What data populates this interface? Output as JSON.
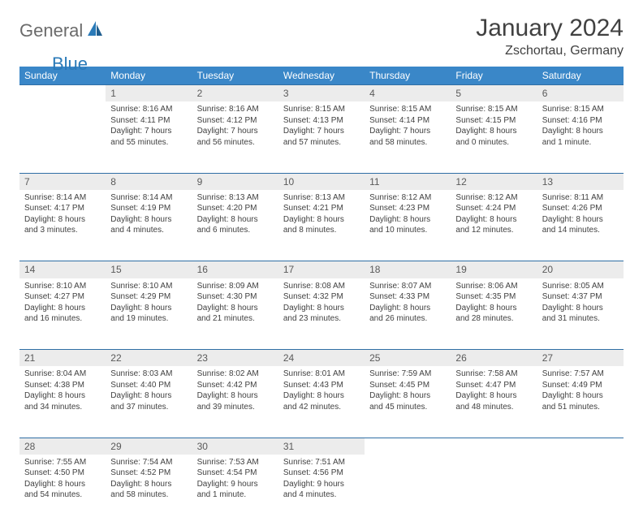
{
  "brand": {
    "general": "General",
    "blue": "Blue"
  },
  "header": {
    "month": "January 2024",
    "location": "Zschortau, Germany"
  },
  "colors": {
    "header_bg": "#3a87c8",
    "header_fg": "#ffffff",
    "daynum_bg": "#ececec",
    "rule": "#2f6ea5",
    "text": "#414141"
  },
  "weekdays": [
    "Sunday",
    "Monday",
    "Tuesday",
    "Wednesday",
    "Thursday",
    "Friday",
    "Saturday"
  ],
  "weeks": [
    [
      null,
      {
        "n": "1",
        "sunrise": "Sunrise: 8:16 AM",
        "sunset": "Sunset: 4:11 PM",
        "d1": "Daylight: 7 hours",
        "d2": "and 55 minutes."
      },
      {
        "n": "2",
        "sunrise": "Sunrise: 8:16 AM",
        "sunset": "Sunset: 4:12 PM",
        "d1": "Daylight: 7 hours",
        "d2": "and 56 minutes."
      },
      {
        "n": "3",
        "sunrise": "Sunrise: 8:15 AM",
        "sunset": "Sunset: 4:13 PM",
        "d1": "Daylight: 7 hours",
        "d2": "and 57 minutes."
      },
      {
        "n": "4",
        "sunrise": "Sunrise: 8:15 AM",
        "sunset": "Sunset: 4:14 PM",
        "d1": "Daylight: 7 hours",
        "d2": "and 58 minutes."
      },
      {
        "n": "5",
        "sunrise": "Sunrise: 8:15 AM",
        "sunset": "Sunset: 4:15 PM",
        "d1": "Daylight: 8 hours",
        "d2": "and 0 minutes."
      },
      {
        "n": "6",
        "sunrise": "Sunrise: 8:15 AM",
        "sunset": "Sunset: 4:16 PM",
        "d1": "Daylight: 8 hours",
        "d2": "and 1 minute."
      }
    ],
    [
      {
        "n": "7",
        "sunrise": "Sunrise: 8:14 AM",
        "sunset": "Sunset: 4:17 PM",
        "d1": "Daylight: 8 hours",
        "d2": "and 3 minutes."
      },
      {
        "n": "8",
        "sunrise": "Sunrise: 8:14 AM",
        "sunset": "Sunset: 4:19 PM",
        "d1": "Daylight: 8 hours",
        "d2": "and 4 minutes."
      },
      {
        "n": "9",
        "sunrise": "Sunrise: 8:13 AM",
        "sunset": "Sunset: 4:20 PM",
        "d1": "Daylight: 8 hours",
        "d2": "and 6 minutes."
      },
      {
        "n": "10",
        "sunrise": "Sunrise: 8:13 AM",
        "sunset": "Sunset: 4:21 PM",
        "d1": "Daylight: 8 hours",
        "d2": "and 8 minutes."
      },
      {
        "n": "11",
        "sunrise": "Sunrise: 8:12 AM",
        "sunset": "Sunset: 4:23 PM",
        "d1": "Daylight: 8 hours",
        "d2": "and 10 minutes."
      },
      {
        "n": "12",
        "sunrise": "Sunrise: 8:12 AM",
        "sunset": "Sunset: 4:24 PM",
        "d1": "Daylight: 8 hours",
        "d2": "and 12 minutes."
      },
      {
        "n": "13",
        "sunrise": "Sunrise: 8:11 AM",
        "sunset": "Sunset: 4:26 PM",
        "d1": "Daylight: 8 hours",
        "d2": "and 14 minutes."
      }
    ],
    [
      {
        "n": "14",
        "sunrise": "Sunrise: 8:10 AM",
        "sunset": "Sunset: 4:27 PM",
        "d1": "Daylight: 8 hours",
        "d2": "and 16 minutes."
      },
      {
        "n": "15",
        "sunrise": "Sunrise: 8:10 AM",
        "sunset": "Sunset: 4:29 PM",
        "d1": "Daylight: 8 hours",
        "d2": "and 19 minutes."
      },
      {
        "n": "16",
        "sunrise": "Sunrise: 8:09 AM",
        "sunset": "Sunset: 4:30 PM",
        "d1": "Daylight: 8 hours",
        "d2": "and 21 minutes."
      },
      {
        "n": "17",
        "sunrise": "Sunrise: 8:08 AM",
        "sunset": "Sunset: 4:32 PM",
        "d1": "Daylight: 8 hours",
        "d2": "and 23 minutes."
      },
      {
        "n": "18",
        "sunrise": "Sunrise: 8:07 AM",
        "sunset": "Sunset: 4:33 PM",
        "d1": "Daylight: 8 hours",
        "d2": "and 26 minutes."
      },
      {
        "n": "19",
        "sunrise": "Sunrise: 8:06 AM",
        "sunset": "Sunset: 4:35 PM",
        "d1": "Daylight: 8 hours",
        "d2": "and 28 minutes."
      },
      {
        "n": "20",
        "sunrise": "Sunrise: 8:05 AM",
        "sunset": "Sunset: 4:37 PM",
        "d1": "Daylight: 8 hours",
        "d2": "and 31 minutes."
      }
    ],
    [
      {
        "n": "21",
        "sunrise": "Sunrise: 8:04 AM",
        "sunset": "Sunset: 4:38 PM",
        "d1": "Daylight: 8 hours",
        "d2": "and 34 minutes."
      },
      {
        "n": "22",
        "sunrise": "Sunrise: 8:03 AM",
        "sunset": "Sunset: 4:40 PM",
        "d1": "Daylight: 8 hours",
        "d2": "and 37 minutes."
      },
      {
        "n": "23",
        "sunrise": "Sunrise: 8:02 AM",
        "sunset": "Sunset: 4:42 PM",
        "d1": "Daylight: 8 hours",
        "d2": "and 39 minutes."
      },
      {
        "n": "24",
        "sunrise": "Sunrise: 8:01 AM",
        "sunset": "Sunset: 4:43 PM",
        "d1": "Daylight: 8 hours",
        "d2": "and 42 minutes."
      },
      {
        "n": "25",
        "sunrise": "Sunrise: 7:59 AM",
        "sunset": "Sunset: 4:45 PM",
        "d1": "Daylight: 8 hours",
        "d2": "and 45 minutes."
      },
      {
        "n": "26",
        "sunrise": "Sunrise: 7:58 AM",
        "sunset": "Sunset: 4:47 PM",
        "d1": "Daylight: 8 hours",
        "d2": "and 48 minutes."
      },
      {
        "n": "27",
        "sunrise": "Sunrise: 7:57 AM",
        "sunset": "Sunset: 4:49 PM",
        "d1": "Daylight: 8 hours",
        "d2": "and 51 minutes."
      }
    ],
    [
      {
        "n": "28",
        "sunrise": "Sunrise: 7:55 AM",
        "sunset": "Sunset: 4:50 PM",
        "d1": "Daylight: 8 hours",
        "d2": "and 54 minutes."
      },
      {
        "n": "29",
        "sunrise": "Sunrise: 7:54 AM",
        "sunset": "Sunset: 4:52 PM",
        "d1": "Daylight: 8 hours",
        "d2": "and 58 minutes."
      },
      {
        "n": "30",
        "sunrise": "Sunrise: 7:53 AM",
        "sunset": "Sunset: 4:54 PM",
        "d1": "Daylight: 9 hours",
        "d2": "and 1 minute."
      },
      {
        "n": "31",
        "sunrise": "Sunrise: 7:51 AM",
        "sunset": "Sunset: 4:56 PM",
        "d1": "Daylight: 9 hours",
        "d2": "and 4 minutes."
      },
      null,
      null,
      null
    ]
  ]
}
